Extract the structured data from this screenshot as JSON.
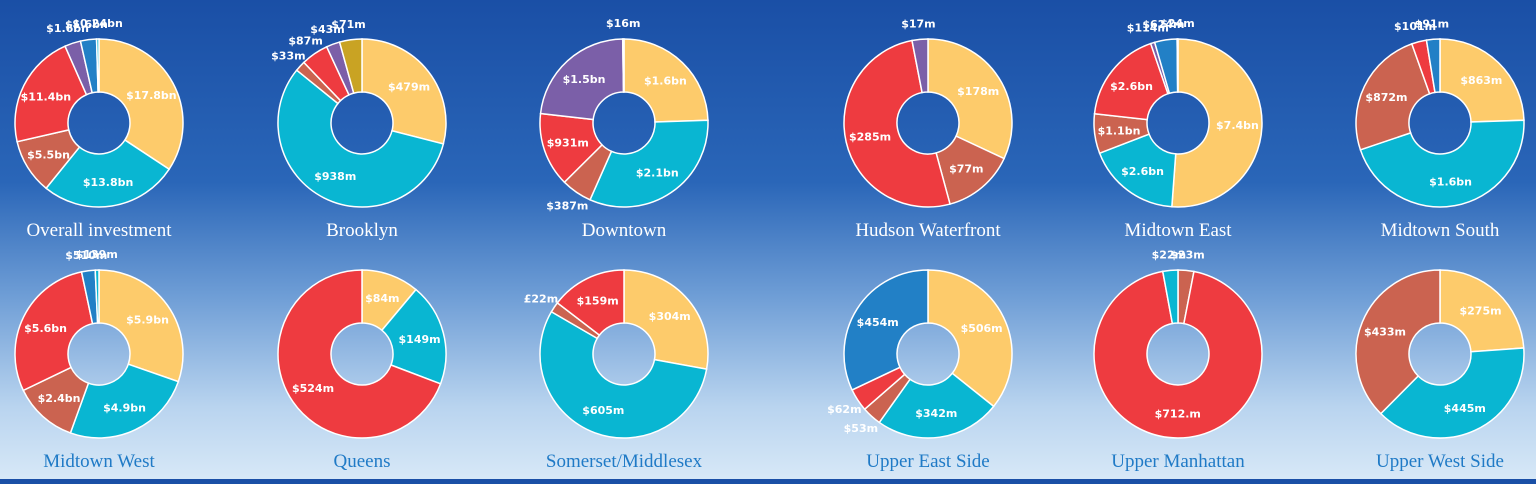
{
  "colors": {
    "yellow": "#fdcb6b",
    "cyan": "#09b6d2",
    "salmon": "#cb6350",
    "red": "#ee3b40",
    "purple": "#7b5fa8",
    "blue": "#2280c6",
    "gold": "#c9a323",
    "caption_top": "#ffffff",
    "caption_bottom": "#1f7ac6",
    "highlight": "#7ee08a"
  },
  "chart_data": [
    {
      "type": "pie",
      "title": "Overall investment",
      "slices": [
        {
          "label": "$17.8bn",
          "value": 17.8,
          "color": "yellow"
        },
        {
          "label": "$13.8bn",
          "value": 13.8,
          "color": "cyan"
        },
        {
          "label": "$5.5bn",
          "value": 5.5,
          "color": "salmon"
        },
        {
          "label": "$11.4bn",
          "value": 11.4,
          "color": "red"
        },
        {
          "label": "$1.6bn",
          "value": 1.6,
          "color": "purple"
        },
        {
          "label": "$1.6bn",
          "value": 1.6,
          "color": "blue"
        },
        {
          "label": "$0.24bn",
          "value": 0.24,
          "color": "cyan"
        }
      ]
    },
    {
      "type": "pie",
      "title": "Brooklyn",
      "slices": [
        {
          "label": "$479m",
          "value": 479,
          "color": "yellow"
        },
        {
          "label": "$938m",
          "value": 938,
          "color": "cyan"
        },
        {
          "label": "$33m",
          "value": 33,
          "color": "salmon"
        },
        {
          "label": "$87m",
          "value": 87,
          "color": "red"
        },
        {
          "label": "$43m",
          "value": 43,
          "color": "purple"
        },
        {
          "label": "$71m",
          "value": 71,
          "color": "gold"
        }
      ]
    },
    {
      "type": "pie",
      "title": "Downtown",
      "slices": [
        {
          "label": "$1.6bn",
          "value": 1600,
          "color": "yellow"
        },
        {
          "label": "$2.1bn",
          "value": 2100,
          "color": "cyan"
        },
        {
          "label": "$387m",
          "value": 387,
          "color": "salmon"
        },
        {
          "label": "$931m",
          "value": 931,
          "color": "red"
        },
        {
          "label": "$1.5bn",
          "value": 1500,
          "color": "purple"
        },
        {
          "label": "$16m",
          "value": 16,
          "color": "blue"
        }
      ]
    },
    {
      "type": "pie",
      "title": "Hudson Waterfront",
      "slices": [
        {
          "label": "$178m",
          "value": 178,
          "color": "yellow"
        },
        {
          "label": "$77m",
          "value": 77,
          "color": "salmon"
        },
        {
          "label": "$285m",
          "value": 285,
          "color": "red"
        },
        {
          "label": "$17m",
          "value": 17,
          "color": "purple"
        }
      ]
    },
    {
      "type": "pie",
      "title": "Midtown East",
      "slices": [
        {
          "label": "$7.4bn",
          "value": 7400,
          "color": "yellow"
        },
        {
          "label": "$2.6bn",
          "value": 2600,
          "color": "cyan"
        },
        {
          "label": "$1.1bn",
          "value": 1100,
          "color": "salmon"
        },
        {
          "label": "$2.6bn",
          "value": 2600,
          "color": "red"
        },
        {
          "label": "$114m",
          "value": 114,
          "color": "purple"
        },
        {
          "label": "$624m",
          "value": 624,
          "color": "blue"
        },
        {
          "label": "$24m",
          "value": 24,
          "color": "cyan",
          "highlight": true
        }
      ]
    },
    {
      "type": "pie",
      "title": "Midtown South",
      "slices": [
        {
          "label": "$863m",
          "value": 863,
          "color": "yellow"
        },
        {
          "label": "$1.6bn",
          "value": 1600,
          "color": "cyan"
        },
        {
          "label": "$872m",
          "value": 872,
          "color": "salmon"
        },
        {
          "label": "$101m",
          "value": 101,
          "color": "red"
        },
        {
          "label": "$91m",
          "value": 91,
          "color": "blue"
        }
      ]
    },
    {
      "type": "pie",
      "title": "Midtown West",
      "slices": [
        {
          "label": "$5.9bn",
          "value": 5900,
          "color": "yellow"
        },
        {
          "label": "$4.9bn",
          "value": 4900,
          "color": "cyan"
        },
        {
          "label": "$2.4bn",
          "value": 2400,
          "color": "salmon"
        },
        {
          "label": "$5.6bn",
          "value": 5600,
          "color": "red"
        },
        {
          "label": "$510m",
          "value": 510,
          "color": "blue"
        },
        {
          "label": "$139m",
          "value": 139,
          "color": "cyan"
        }
      ]
    },
    {
      "type": "pie",
      "title": "Queens",
      "slices": [
        {
          "label": "$84m",
          "value": 84,
          "color": "yellow"
        },
        {
          "label": "$149m",
          "value": 149,
          "color": "cyan"
        },
        {
          "label": "$524m",
          "value": 524,
          "color": "red"
        }
      ]
    },
    {
      "type": "pie",
      "title": "Somerset/Middlesex",
      "slices": [
        {
          "label": "$304m",
          "value": 304,
          "color": "yellow"
        },
        {
          "label": "$605m",
          "value": 605,
          "color": "cyan"
        },
        {
          "label": "£22m",
          "value": 22,
          "color": "salmon"
        },
        {
          "label": "$159m",
          "value": 159,
          "color": "red"
        }
      ]
    },
    {
      "type": "pie",
      "title": "Upper East Side",
      "slices": [
        {
          "label": "$506m",
          "value": 506,
          "color": "yellow"
        },
        {
          "label": "$342m",
          "value": 342,
          "color": "cyan"
        },
        {
          "label": "$53m",
          "value": 53,
          "color": "salmon"
        },
        {
          "label": "$62m",
          "value": 62,
          "color": "red"
        },
        {
          "label": "$454m",
          "value": 454,
          "color": "blue"
        }
      ]
    },
    {
      "type": "pie",
      "title": "Upper Manhattan",
      "slices": [
        {
          "label": "$23m",
          "value": 23,
          "color": "salmon"
        },
        {
          "label": "$712.m",
          "value": 712,
          "color": "red"
        },
        {
          "label": "$22m",
          "value": 22,
          "color": "cyan"
        }
      ]
    },
    {
      "type": "pie",
      "title": "Upper West Side",
      "slices": [
        {
          "label": "$275m",
          "value": 275,
          "color": "yellow"
        },
        {
          "label": "$445m",
          "value": 445,
          "color": "cyan"
        },
        {
          "label": "$433m",
          "value": 433,
          "color": "salmon"
        }
      ]
    }
  ]
}
